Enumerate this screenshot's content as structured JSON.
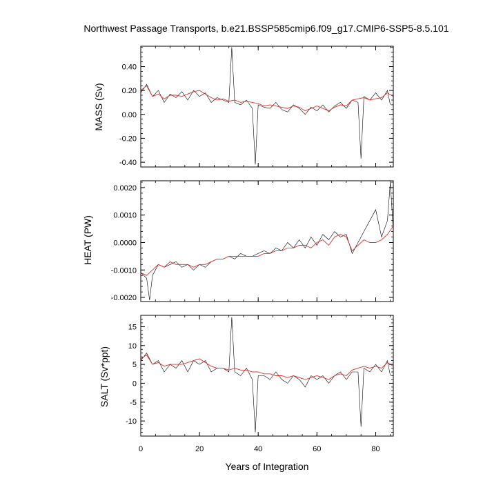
{
  "title": "Northwest Passage Transports, b.e21.BSSP585cmip6.f09_g17.CMIP6-SSP5-8.5.101",
  "colors": {
    "raw": "#000000",
    "smooth": "#e0302a",
    "axis": "#000000"
  },
  "chart_data": [
    {
      "type": "line",
      "ylabel": "MASS (Sv)",
      "xlabel": "",
      "xlim": [
        0,
        86
      ],
      "ylim": [
        -0.44,
        0.57
      ],
      "xticks": [
        0,
        20,
        40,
        60,
        80
      ],
      "yticks": [
        -0.4,
        -0.2,
        0.0,
        0.2,
        0.4
      ],
      "ytick_labels": [
        "-0.40",
        "-0.20",
        "0.00",
        "0.20",
        "0.40"
      ],
      "series": [
        {
          "style": "thin black monthly values",
          "x": [
            0,
            2,
            4,
            6,
            8,
            10,
            12,
            14,
            16,
            18,
            20,
            22,
            24,
            26,
            28,
            30,
            31,
            32,
            34,
            36,
            38,
            39,
            40,
            42,
            44,
            46,
            48,
            50,
            52,
            54,
            56,
            58,
            60,
            62,
            64,
            66,
            68,
            70,
            72,
            74,
            75,
            76,
            78,
            80,
            82,
            84,
            85
          ],
          "y": [
            0.18,
            0.25,
            0.15,
            0.2,
            0.1,
            0.17,
            0.14,
            0.19,
            0.12,
            0.2,
            0.15,
            0.18,
            0.1,
            0.14,
            0.12,
            0.1,
            0.56,
            0.1,
            0.08,
            0.12,
            0.05,
            -0.42,
            0.08,
            0.06,
            0.05,
            0.1,
            0.04,
            0.02,
            0.08,
            0.05,
            0.0,
            0.06,
            0.03,
            0.08,
            0.02,
            0.07,
            0.1,
            0.05,
            0.12,
            0.1,
            -0.37,
            0.15,
            0.12,
            0.18,
            0.12,
            0.2,
            0.08
          ]
        },
        {
          "style": "red annual running mean",
          "x": [
            0,
            2,
            4,
            6,
            8,
            10,
            12,
            14,
            16,
            18,
            20,
            22,
            24,
            26,
            28,
            30,
            32,
            34,
            36,
            38,
            40,
            42,
            44,
            46,
            48,
            50,
            52,
            54,
            56,
            58,
            60,
            62,
            64,
            66,
            68,
            70,
            72,
            74,
            76,
            78,
            80,
            82,
            84,
            86
          ],
          "y": [
            0.2,
            0.24,
            0.15,
            0.17,
            0.13,
            0.16,
            0.16,
            0.15,
            0.17,
            0.19,
            0.2,
            0.17,
            0.14,
            0.12,
            0.13,
            0.11,
            0.12,
            0.1,
            0.11,
            0.1,
            0.09,
            0.07,
            0.08,
            0.07,
            0.06,
            0.05,
            0.07,
            0.06,
            0.03,
            0.05,
            0.07,
            0.05,
            0.03,
            0.06,
            0.08,
            0.07,
            0.12,
            0.13,
            0.14,
            0.12,
            0.13,
            0.14,
            0.18,
            0.15
          ]
        }
      ]
    },
    {
      "type": "line",
      "ylabel": "HEAT (PW)",
      "xlabel": "",
      "xlim": [
        0,
        86
      ],
      "ylim": [
        -0.00215,
        0.00225
      ],
      "xticks": [
        0,
        20,
        40,
        60,
        80
      ],
      "yticks": [
        -0.002,
        -0.001,
        0.0,
        0.001,
        0.002
      ],
      "ytick_labels": [
        "-0.0020",
        "-0.0010",
        "0.0000",
        "0.0010",
        "0.0020"
      ],
      "series": [
        {
          "style": "thin black monthly values",
          "x": [
            0,
            2,
            3,
            4,
            6,
            8,
            10,
            12,
            14,
            16,
            18,
            20,
            22,
            24,
            26,
            28,
            30,
            32,
            34,
            36,
            38,
            40,
            42,
            44,
            46,
            48,
            50,
            52,
            54,
            56,
            58,
            60,
            62,
            64,
            66,
            68,
            70,
            72,
            74,
            76,
            78,
            80,
            82,
            84,
            85,
            86
          ],
          "y": [
            -0.0011,
            -0.0013,
            -0.0021,
            -0.0012,
            -0.0008,
            -0.0009,
            -0.0008,
            -0.0007,
            -0.0009,
            -0.0008,
            -0.001,
            -0.0008,
            -0.0009,
            -0.0007,
            -0.0006,
            -0.0006,
            -0.0005,
            -0.0006,
            -0.0004,
            -0.0005,
            -0.0005,
            -0.0004,
            -0.0003,
            -0.0004,
            -0.0002,
            -0.0003,
            0.0,
            -0.0002,
            0.0001,
            -0.0002,
            0.0002,
            -0.0001,
            0.0003,
            0.0001,
            0.0004,
            0.0002,
            0.0003,
            -0.0004,
            0.0,
            0.0004,
            0.0008,
            0.0012,
            0.0002,
            0.0008,
            0.0022,
            0.0004
          ]
        },
        {
          "style": "red annual running mean",
          "x": [
            0,
            2,
            4,
            6,
            8,
            10,
            12,
            14,
            16,
            18,
            20,
            22,
            24,
            26,
            28,
            30,
            32,
            34,
            36,
            38,
            40,
            42,
            44,
            46,
            48,
            50,
            52,
            54,
            56,
            58,
            60,
            62,
            64,
            66,
            68,
            70,
            72,
            74,
            76,
            78,
            80,
            82,
            84,
            86
          ],
          "y": [
            -0.0011,
            -0.0012,
            -0.001,
            -0.0008,
            -0.0009,
            -0.0007,
            -0.0008,
            -0.0008,
            -0.0008,
            -0.0009,
            -0.0008,
            -0.0008,
            -0.0007,
            -0.0006,
            -0.0006,
            -0.0005,
            -0.0005,
            -0.0005,
            -0.0005,
            -0.0005,
            -0.0005,
            -0.0004,
            -0.0004,
            -0.0003,
            -0.0003,
            -0.0002,
            -0.0002,
            -0.0001,
            -0.0001,
            -0.0002,
            0.0,
            0.0001,
            -0.0001,
            0.0002,
            0.0003,
            0.0002,
            -0.0003,
            -0.0001,
            0.0001,
            0.0,
            0.0,
            0.0001,
            0.0003,
            0.0006
          ]
        }
      ]
    },
    {
      "type": "line",
      "ylabel": "SALT (Sv*ppt)",
      "xlabel": "Years of Integration",
      "xlim": [
        0,
        86
      ],
      "ylim": [
        -14,
        18
      ],
      "xticks": [
        0,
        20,
        40,
        60,
        80
      ],
      "yticks": [
        -10,
        -5,
        0,
        5,
        10,
        15
      ],
      "ytick_labels": [
        "-10",
        "-5",
        "0",
        "5",
        "10",
        "15"
      ],
      "series": [
        {
          "style": "thin black monthly values",
          "x": [
            0,
            2,
            4,
            6,
            8,
            10,
            12,
            14,
            16,
            18,
            20,
            22,
            24,
            26,
            28,
            30,
            31,
            32,
            34,
            36,
            38,
            39,
            40,
            42,
            44,
            46,
            48,
            50,
            52,
            54,
            56,
            58,
            60,
            62,
            64,
            66,
            68,
            70,
            72,
            74,
            75,
            76,
            78,
            80,
            82,
            84,
            85
          ],
          "y": [
            6,
            8,
            5,
            6,
            3,
            5,
            4,
            6,
            3,
            6,
            5,
            6,
            3,
            4,
            4,
            3,
            17.5,
            3,
            2,
            4,
            1,
            -13,
            2,
            2,
            1,
            3,
            1,
            0,
            2,
            1,
            -1,
            2,
            1,
            2,
            0,
            2,
            3,
            1,
            3,
            3,
            -11.5,
            4,
            3,
            5,
            3,
            6,
            2
          ]
        },
        {
          "style": "red annual running mean",
          "x": [
            0,
            2,
            4,
            6,
            8,
            10,
            12,
            14,
            16,
            18,
            20,
            22,
            24,
            26,
            28,
            30,
            32,
            34,
            36,
            38,
            40,
            42,
            44,
            46,
            48,
            50,
            52,
            54,
            56,
            58,
            60,
            62,
            64,
            66,
            68,
            70,
            72,
            74,
            76,
            78,
            80,
            82,
            84,
            86
          ],
          "y": [
            6.5,
            7.5,
            5.0,
            5.5,
            4.5,
            5.0,
            5.0,
            5.0,
            5.5,
            6.0,
            6.5,
            5.5,
            4.5,
            4.0,
            4.0,
            3.5,
            4.0,
            3.5,
            3.5,
            3.0,
            3.0,
            2.5,
            2.5,
            2.0,
            2.0,
            1.5,
            2.0,
            1.5,
            1.0,
            1.5,
            2.0,
            1.5,
            1.0,
            2.0,
            2.5,
            2.0,
            3.5,
            4.0,
            4.5,
            4.0,
            4.5,
            4.0,
            5.5,
            4.5
          ]
        }
      ]
    }
  ]
}
